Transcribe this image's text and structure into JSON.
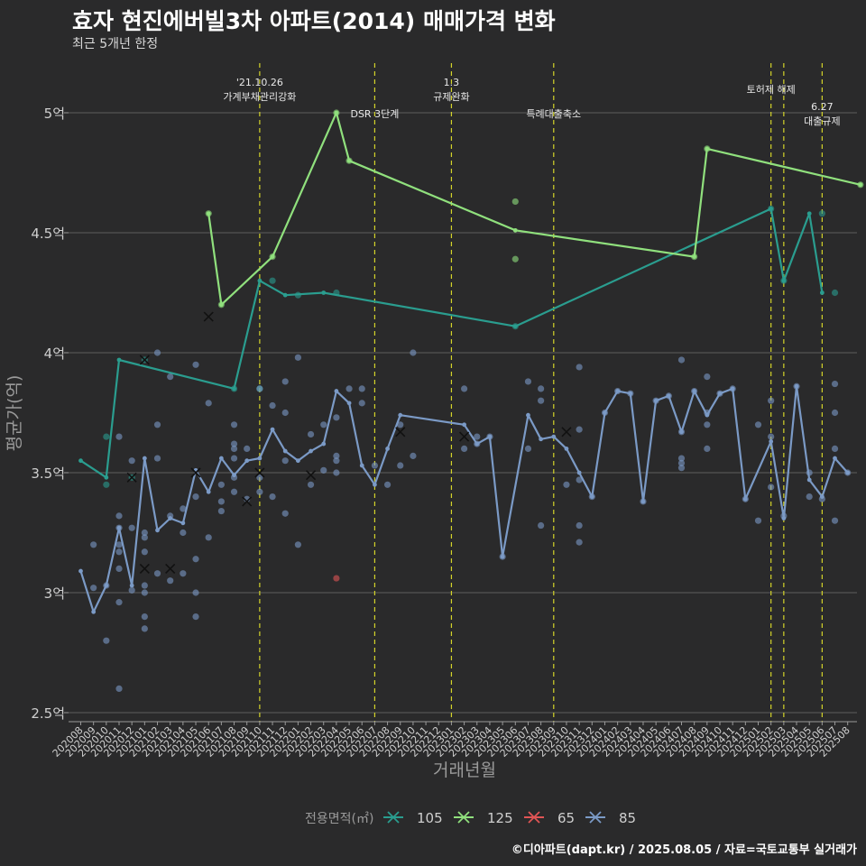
{
  "title": "효자 현진에버빌3차 아파트(2014) 매매가격 변화",
  "subtitle": "최근 5개년 한정",
  "caption": "©디아파트(dapt.kr) / 2025.08.05 / 자료=국토교통부 실거래가",
  "chart_data": {
    "type": "line",
    "xlabel": "거래년월",
    "ylabel": "평균가(억)",
    "ylim": [
      2.5,
      5.2
    ],
    "yticks": [
      2.5,
      3,
      3.5,
      4,
      4.5,
      5
    ],
    "ytick_labels": [
      "2.5억",
      "3억",
      "3.5억",
      "4억",
      "4.5억",
      "5억"
    ],
    "grid": true,
    "legend_title": "전용면적(㎡)",
    "legend_position": "bottom",
    "categories": [
      "202008",
      "202009",
      "202010",
      "202011",
      "202012",
      "202101",
      "202102",
      "202103",
      "202104",
      "202105",
      "202106",
      "202107",
      "202108",
      "202109",
      "202110",
      "202111",
      "202112",
      "202201",
      "202202",
      "202203",
      "202204",
      "202205",
      "202206",
      "202207",
      "202208",
      "202209",
      "202210",
      "202211",
      "202212",
      "202301",
      "202302",
      "202303",
      "202304",
      "202305",
      "202306",
      "202307",
      "202308",
      "202309",
      "202310",
      "202311",
      "202312",
      "202401",
      "202402",
      "202403",
      "202404",
      "202405",
      "202406",
      "202407",
      "202408",
      "202409",
      "202410",
      "202411",
      "202412",
      "202501",
      "202502",
      "202503",
      "202504",
      "202505",
      "202506",
      "202507",
      "202508"
    ],
    "series": [
      {
        "name": "105",
        "color": "#2a9d8f",
        "line": [
          [
            0,
            3.55
          ],
          [
            2,
            3.48
          ],
          [
            3,
            3.97
          ],
          [
            12,
            3.85
          ],
          [
            14,
            4.3
          ],
          [
            16,
            4.24
          ],
          [
            19,
            4.25
          ],
          [
            34,
            4.11
          ],
          [
            54,
            4.6
          ],
          [
            55,
            4.3
          ],
          [
            57,
            4.58
          ],
          [
            58,
            4.25
          ]
        ],
        "points": [
          [
            2,
            3.65
          ],
          [
            2,
            3.45
          ],
          [
            4,
            3.48
          ],
          [
            5,
            3.97
          ],
          [
            12,
            3.85
          ],
          [
            14,
            3.85
          ],
          [
            15,
            4.3
          ],
          [
            17,
            4.24
          ],
          [
            20,
            4.25
          ],
          [
            34,
            4.11
          ],
          [
            54,
            4.6
          ],
          [
            55,
            4.3
          ],
          [
            58,
            4.58
          ],
          [
            59,
            4.25
          ]
        ],
        "crosses": [
          [
            4,
            3.48
          ],
          [
            5,
            3.97
          ]
        ]
      },
      {
        "name": "125",
        "color": "#90e07d",
        "line": [
          [
            10,
            4.58
          ],
          [
            11,
            4.2
          ],
          [
            15,
            4.4
          ],
          [
            20,
            5.0
          ],
          [
            21,
            4.8
          ],
          [
            34,
            4.51
          ],
          [
            48,
            4.4
          ],
          [
            49,
            4.85
          ],
          [
            61,
            4.7
          ]
        ],
        "points": [
          [
            10,
            4.58
          ],
          [
            11,
            4.2
          ],
          [
            15,
            4.4
          ],
          [
            20,
            5.0
          ],
          [
            21,
            4.8
          ],
          [
            34,
            4.63
          ],
          [
            34,
            4.39
          ],
          [
            48,
            4.4
          ],
          [
            49,
            4.85
          ],
          [
            61,
            4.7
          ]
        ],
        "crosses": []
      },
      {
        "name": "65",
        "color": "#e05555",
        "line": [],
        "points": [
          [
            20,
            3.06
          ]
        ],
        "crosses": []
      },
      {
        "name": "85",
        "color": "#7b9ac6",
        "line": [
          [
            0,
            3.09
          ],
          [
            1,
            2.92
          ],
          [
            2,
            3.03
          ],
          [
            3,
            3.27
          ],
          [
            4,
            3.03
          ],
          [
            5,
            3.56
          ],
          [
            6,
            3.26
          ],
          [
            7,
            3.31
          ],
          [
            8,
            3.29
          ],
          [
            9,
            3.51
          ],
          [
            10,
            3.42
          ],
          [
            11,
            3.56
          ],
          [
            12,
            3.49
          ],
          [
            13,
            3.55
          ],
          [
            14,
            3.56
          ],
          [
            15,
            3.68
          ],
          [
            16,
            3.59
          ],
          [
            17,
            3.55
          ],
          [
            18,
            3.59
          ],
          [
            19,
            3.62
          ],
          [
            20,
            3.84
          ],
          [
            21,
            3.79
          ],
          [
            22,
            3.53
          ],
          [
            23,
            3.45
          ],
          [
            24,
            3.6
          ],
          [
            25,
            3.74
          ],
          [
            30,
            3.7
          ],
          [
            31,
            3.62
          ],
          [
            32,
            3.65
          ],
          [
            33,
            3.15
          ],
          [
            35,
            3.74
          ],
          [
            36,
            3.64
          ],
          [
            37,
            3.65
          ],
          [
            38,
            3.6
          ],
          [
            39,
            3.5
          ],
          [
            40,
            3.4
          ],
          [
            41,
            3.75
          ],
          [
            42,
            3.84
          ],
          [
            43,
            3.83
          ],
          [
            44,
            3.38
          ],
          [
            45,
            3.8
          ],
          [
            46,
            3.82
          ],
          [
            47,
            3.67
          ],
          [
            48,
            3.84
          ],
          [
            49,
            3.74
          ],
          [
            50,
            3.83
          ],
          [
            51,
            3.85
          ],
          [
            52,
            3.39
          ],
          [
            54,
            3.63
          ],
          [
            55,
            3.31
          ],
          [
            56,
            3.86
          ],
          [
            57,
            3.47
          ],
          [
            58,
            3.4
          ],
          [
            59,
            3.56
          ],
          [
            60,
            3.5
          ]
        ],
        "points": [
          [
            1,
            3.2
          ],
          [
            1,
            3.02
          ],
          [
            2,
            2.8
          ],
          [
            2,
            3.03
          ],
          [
            3,
            3.65
          ],
          [
            3,
            3.32
          ],
          [
            3,
            3.27
          ],
          [
            3,
            3.2
          ],
          [
            3,
            3.17
          ],
          [
            3,
            3.1
          ],
          [
            3,
            2.96
          ],
          [
            3,
            2.6
          ],
          [
            4,
            3.55
          ],
          [
            4,
            3.27
          ],
          [
            4,
            3.01
          ],
          [
            5,
            3.25
          ],
          [
            5,
            3.23
          ],
          [
            5,
            3.17
          ],
          [
            5,
            3.03
          ],
          [
            5,
            3.0
          ],
          [
            5,
            2.9
          ],
          [
            5,
            2.85
          ],
          [
            6,
            4.0
          ],
          [
            6,
            3.7
          ],
          [
            6,
            3.56
          ],
          [
            6,
            3.08
          ],
          [
            7,
            3.9
          ],
          [
            7,
            3.32
          ],
          [
            7,
            3.05
          ],
          [
            8,
            3.35
          ],
          [
            8,
            3.25
          ],
          [
            8,
            3.08
          ],
          [
            9,
            3.95
          ],
          [
            9,
            3.4
          ],
          [
            9,
            3.14
          ],
          [
            9,
            3.0
          ],
          [
            9,
            2.9
          ],
          [
            10,
            3.79
          ],
          [
            10,
            3.23
          ],
          [
            11,
            3.45
          ],
          [
            11,
            3.38
          ],
          [
            11,
            3.34
          ],
          [
            12,
            3.7
          ],
          [
            12,
            3.62
          ],
          [
            12,
            3.6
          ],
          [
            12,
            3.56
          ],
          [
            12,
            3.48
          ],
          [
            12,
            3.42
          ],
          [
            13,
            3.6
          ],
          [
            13,
            3.39
          ],
          [
            14,
            3.85
          ],
          [
            14,
            3.48
          ],
          [
            14,
            3.42
          ],
          [
            15,
            3.78
          ],
          [
            15,
            3.4
          ],
          [
            16,
            3.88
          ],
          [
            16,
            3.75
          ],
          [
            16,
            3.55
          ],
          [
            16,
            3.33
          ],
          [
            17,
            3.98
          ],
          [
            17,
            3.2
          ],
          [
            18,
            3.66
          ],
          [
            18,
            3.45
          ],
          [
            19,
            3.7
          ],
          [
            19,
            3.51
          ],
          [
            20,
            3.73
          ],
          [
            20,
            3.57
          ],
          [
            20,
            3.55
          ],
          [
            20,
            3.5
          ],
          [
            21,
            3.85
          ],
          [
            22,
            3.85
          ],
          [
            22,
            3.79
          ],
          [
            23,
            3.53
          ],
          [
            24,
            3.45
          ],
          [
            25,
            3.7
          ],
          [
            25,
            3.53
          ],
          [
            26,
            4.0
          ],
          [
            26,
            3.57
          ],
          [
            30,
            3.85
          ],
          [
            30,
            3.6
          ],
          [
            31,
            3.65
          ],
          [
            31,
            3.62
          ],
          [
            32,
            3.65
          ],
          [
            33,
            3.15
          ],
          [
            35,
            3.88
          ],
          [
            35,
            3.6
          ],
          [
            36,
            3.85
          ],
          [
            36,
            3.8
          ],
          [
            36,
            3.28
          ],
          [
            38,
            3.45
          ],
          [
            39,
            3.94
          ],
          [
            39,
            3.68
          ],
          [
            39,
            3.47
          ],
          [
            39,
            3.28
          ],
          [
            39,
            3.21
          ],
          [
            40,
            3.4
          ],
          [
            41,
            3.75
          ],
          [
            42,
            3.84
          ],
          [
            43,
            3.83
          ],
          [
            44,
            3.38
          ],
          [
            45,
            3.8
          ],
          [
            46,
            3.82
          ],
          [
            47,
            3.97
          ],
          [
            47,
            3.67
          ],
          [
            47,
            3.56
          ],
          [
            47,
            3.54
          ],
          [
            47,
            3.52
          ],
          [
            48,
            3.84
          ],
          [
            49,
            3.9
          ],
          [
            49,
            3.75
          ],
          [
            49,
            3.7
          ],
          [
            49,
            3.6
          ],
          [
            50,
            3.83
          ],
          [
            51,
            3.85
          ],
          [
            52,
            3.39
          ],
          [
            53,
            3.7
          ],
          [
            53,
            3.3
          ],
          [
            54,
            3.8
          ],
          [
            54,
            3.65
          ],
          [
            54,
            3.44
          ],
          [
            55,
            3.32
          ],
          [
            56,
            3.86
          ],
          [
            57,
            3.5
          ],
          [
            57,
            3.4
          ],
          [
            58,
            3.39
          ],
          [
            59,
            3.87
          ],
          [
            59,
            3.75
          ],
          [
            59,
            3.6
          ],
          [
            59,
            3.3
          ],
          [
            60,
            3.5
          ]
        ],
        "crosses": [
          [
            5,
            3.1
          ],
          [
            7,
            3.1
          ],
          [
            9,
            3.5
          ],
          [
            10,
            4.15
          ],
          [
            13,
            3.38
          ],
          [
            14,
            3.5
          ],
          [
            18,
            3.49
          ],
          [
            25,
            3.67
          ],
          [
            30,
            3.65
          ],
          [
            38,
            3.67
          ]
        ]
      }
    ],
    "annotations": [
      {
        "x": 14.0,
        "lines": [
          "'21.10.26",
          "가계부채관리강화"
        ]
      },
      {
        "x": 23.0,
        "lines": [
          "DSR 3단계"
        ]
      },
      {
        "x": 29.0,
        "lines": [
          "1.3",
          "규제완화"
        ]
      },
      {
        "x": 37.0,
        "lines": [
          "특례대출축소"
        ]
      },
      {
        "x": 54.0,
        "lines": [
          "토허제 해제"
        ]
      },
      {
        "x": 55.0,
        "lines": []
      },
      {
        "x": 58.0,
        "lines": [
          "6.27",
          "대출규제"
        ]
      }
    ]
  }
}
